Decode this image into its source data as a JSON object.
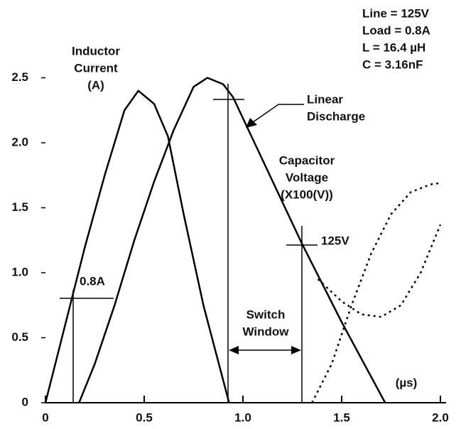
{
  "chart_data": {
    "type": "line",
    "xlim": [
      0,
      2.0
    ],
    "ylim": [
      0,
      2.5
    ],
    "xticks": [
      0,
      0.5,
      {
        "value": 1,
        "label": "1.0"
      },
      1.5,
      {
        "value": 2,
        "label": "2.0"
      }
    ],
    "yticks": [
      0,
      0.5,
      {
        "value": 1,
        "label": "1.0"
      },
      1.5,
      {
        "value": 2,
        "label": "2.0"
      },
      2.5
    ],
    "x_unit": "(µs)",
    "series": [
      {
        "color": "#000000",
        "style": "solid",
        "x": [
          0,
          0.1,
          0.2,
          0.3,
          0.4,
          0.47,
          0.55,
          0.62,
          0.7,
          0.8,
          0.93
        ],
        "values": [
          0,
          0.6,
          1.2,
          1.75,
          2.25,
          2.4,
          2.3,
          2.05,
          1.45,
          0.75,
          0
        ]
      },
      {
        "color": "#000000",
        "style": "solid",
        "x": [
          0.17,
          0.25,
          0.35,
          0.45,
          0.55,
          0.65,
          0.75,
          0.82,
          0.9,
          0.95,
          1.3,
          1.5,
          1.72
        ],
        "values": [
          0,
          0.3,
          0.75,
          1.25,
          1.7,
          2.1,
          2.43,
          2.5,
          2.45,
          2.35,
          1.22,
          0.62,
          0
        ]
      },
      {
        "color": "#000000",
        "style": "dotted",
        "x": [
          1.38,
          1.5,
          1.6,
          1.7,
          1.8,
          1.9,
          2.0
        ],
        "values": [
          0.95,
          0.78,
          0.68,
          0.66,
          0.75,
          1.0,
          1.37
        ]
      },
      {
        "color": "#000000",
        "style": "dotted",
        "x": [
          1.35,
          1.45,
          1.55,
          1.65,
          1.75,
          1.85,
          1.95,
          2.0
        ],
        "values": [
          0,
          0.3,
          0.75,
          1.15,
          1.45,
          1.62,
          1.68,
          1.69
        ]
      }
    ],
    "annotations": [
      {
        "lines": [
          "Line = 125V",
          "Load = 0.8A",
          "L = 16.4 µH",
          "C = 3.16nF"
        ]
      },
      {
        "lines": [
          "Inductor",
          "Current",
          "(A)"
        ]
      },
      {
        "lines": [
          "Linear",
          "Discharge"
        ]
      },
      {
        "lines": [
          "Capacitor",
          "Voltage",
          "(X100(V))"
        ]
      },
      {
        "lines": [
          "125V"
        ]
      },
      {
        "lines": [
          "0.8A"
        ]
      },
      {
        "lines": [
          "Switch",
          "Window"
        ]
      }
    ]
  }
}
